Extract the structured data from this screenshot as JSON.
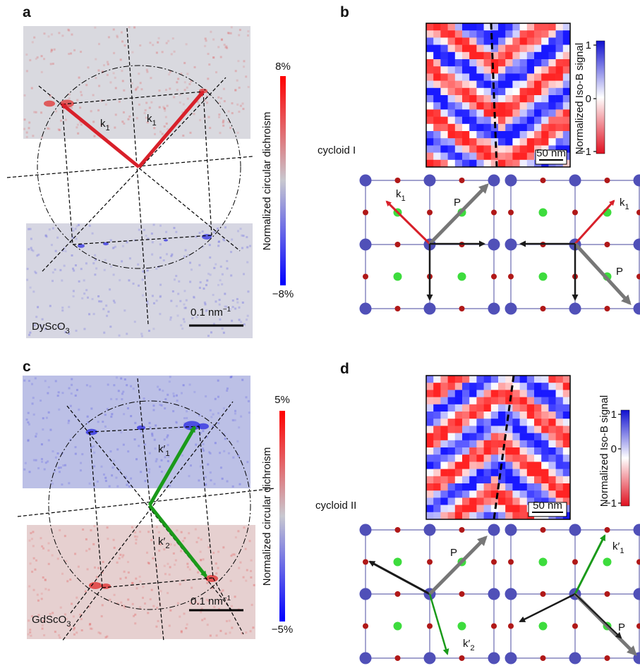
{
  "panels": [
    {
      "label": "a",
      "substrate": {
        "text": "DyScO",
        "subscript": "3"
      },
      "scale_bar": {
        "text": "0.1 nm",
        "superscript": "−1"
      },
      "colorbar": {
        "title": "Normalized circular dichroism",
        "max": "8%",
        "min": "−8%"
      },
      "vectors": [
        {
          "text": "k",
          "subscript": "1"
        },
        {
          "text": "k",
          "subscript": "1"
        }
      ]
    },
    {
      "label": "b",
      "cycloid": "cycloid I",
      "colorbar": {
        "title": "Normalized Iso-B signal",
        "ticks": [
          "1",
          "0",
          "−1"
        ]
      },
      "scale_bar": "50 nm",
      "vectors": [
        {
          "text": "k",
          "subscript": "1"
        },
        {
          "text": "P"
        },
        {
          "text": "k",
          "subscript": "1"
        },
        {
          "text": "P"
        }
      ]
    },
    {
      "label": "c",
      "substrate": {
        "text": "GdScO",
        "subscript": "3"
      },
      "scale_bar": {
        "text": "0.1 nm",
        "superscript": "−1"
      },
      "colorbar": {
        "title": "Normalized circular dichroism",
        "max": "5%",
        "min": "−5%"
      },
      "vectors": [
        {
          "text": "k′",
          "subscript": "1"
        },
        {
          "text": "k′",
          "subscript": "2"
        }
      ]
    },
    {
      "label": "d",
      "cycloid": "cycloid II",
      "colorbar": {
        "title": "Normalized Iso-B signal",
        "ticks": [
          "1",
          "0",
          "−1"
        ]
      },
      "scale_bar": "50 nm",
      "vectors": [
        {
          "text": "P"
        },
        {
          "text": "k′",
          "subscript": "2"
        },
        {
          "text": "k′",
          "subscript": "1"
        },
        {
          "text": "P"
        }
      ]
    }
  ]
}
